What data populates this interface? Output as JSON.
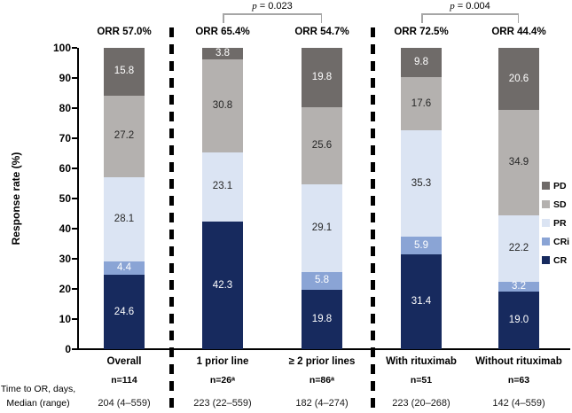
{
  "chart_data": {
    "type": "bar",
    "subtype": "stacked_percent",
    "ylabel": "Response rate (%)",
    "ylim": [
      0,
      100
    ],
    "yticks": [
      0,
      10,
      20,
      30,
      40,
      50,
      60,
      70,
      80,
      90,
      100
    ],
    "stack_order_top_to_bottom": [
      "PD",
      "SD",
      "PR",
      "CRi",
      "CR"
    ],
    "series_colors": {
      "CR": "#172a5e",
      "CRi": "#8aa4d5",
      "PR": "#dbe4f3",
      "SD": "#b4b1af",
      "PD": "#6f6b69"
    },
    "label_colors": {
      "CR": "#ffffff",
      "CRi": "#ffffff",
      "PR": "#262626",
      "SD": "#262626",
      "PD": "#ffffff"
    },
    "legend_order_top_to_bottom": [
      "PD",
      "SD",
      "PR",
      "CRi",
      "CR"
    ],
    "categories": [
      "Overall",
      "1 prior line",
      "≥ 2 prior lines",
      "With rituximab",
      "Without rituximab"
    ],
    "bars": [
      {
        "category": "Overall",
        "orr": "ORR 57.0%",
        "n": "n=114",
        "median_range": "204 (4–559)",
        "values": {
          "CR": "24.6",
          "CRi": "4.4",
          "PR": "28.1",
          "SD": "27.2",
          "PD": "15.8"
        }
      },
      {
        "category": "1 prior line",
        "orr": "ORR 65.4%",
        "n": "n=26ᵃ",
        "median_range": "223 (22–559)",
        "values": {
          "CR": "42.3",
          "CRi": null,
          "PR": "23.1",
          "SD": "30.8",
          "PD": "3.8"
        }
      },
      {
        "category": "≥ 2 prior lines",
        "orr": "ORR 54.7%",
        "n": "n=86ᵃ",
        "median_range": "182 (4–274)",
        "values": {
          "CR": "19.8",
          "CRi": "5.8",
          "PR": "29.1",
          "SD": "25.6",
          "PD": "19.8"
        }
      },
      {
        "category": "With rituximab",
        "orr": "ORR 72.5%",
        "n": "n=51",
        "median_range": "223 (20–268)",
        "values": {
          "CR": "31.4",
          "CRi": "5.9",
          "PR": "35.3",
          "SD": "17.6",
          "PD": "9.8"
        }
      },
      {
        "category": "Without rituximab",
        "orr": "ORR 44.4%",
        "n": "n=63",
        "median_range": "142 (4–559)",
        "values": {
          "CR": "19.0",
          "CRi": "3.2",
          "PR": "22.2",
          "SD": "34.9",
          "PD": "20.6"
        }
      }
    ],
    "comparisons": [
      {
        "p_italic": "p",
        "p_text": " = 0.023",
        "between": [
          1,
          2
        ]
      },
      {
        "p_italic": "p",
        "p_text": " = 0.004",
        "between": [
          3,
          4
        ]
      }
    ],
    "row_label": [
      "Time to OR, days,",
      "Median (range)"
    ]
  }
}
